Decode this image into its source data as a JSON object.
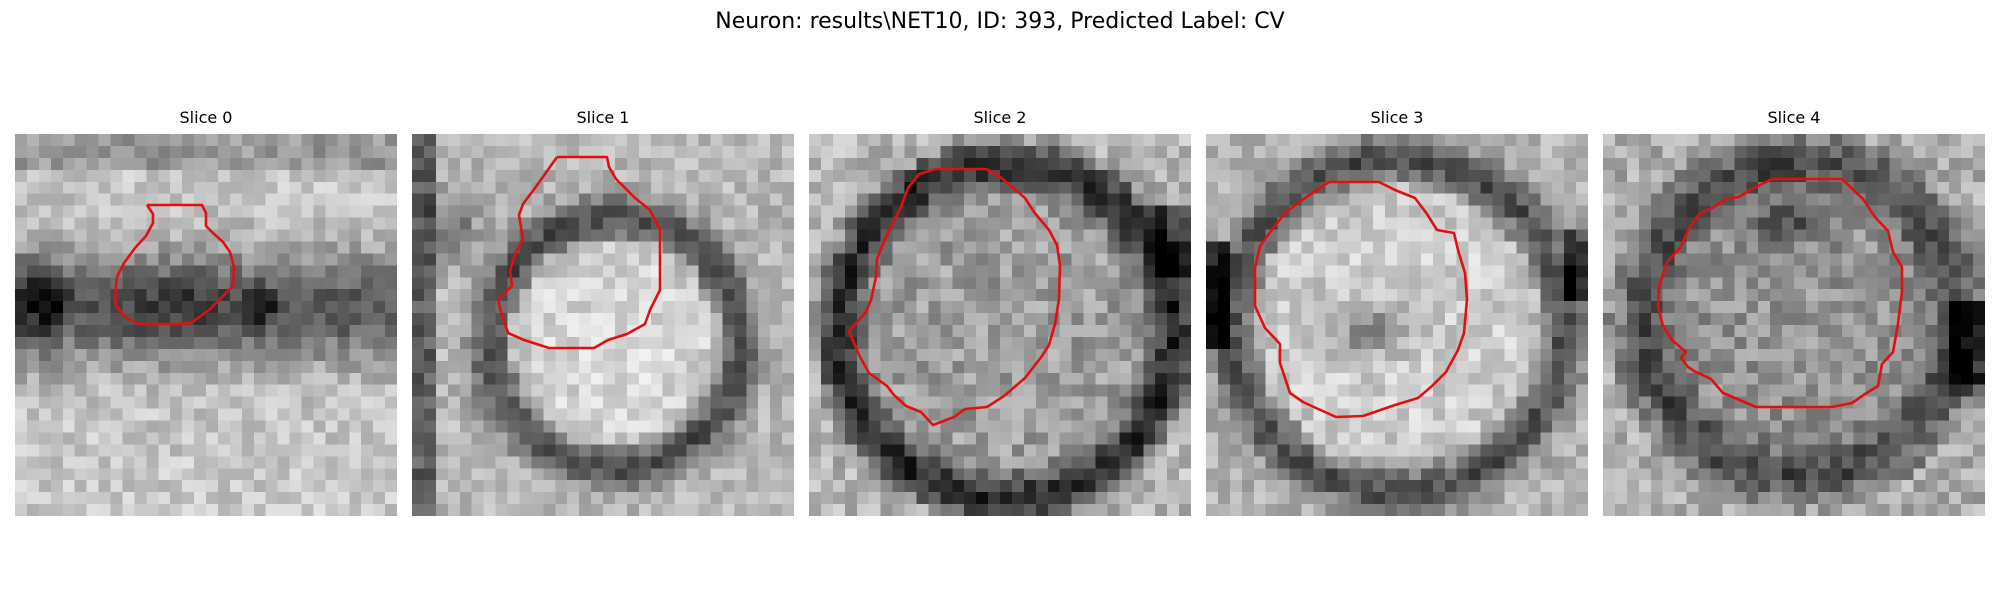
{
  "figure": {
    "title": "Neuron: results\\NET10, ID: 393, Predicted Label: CV"
  },
  "colors": {
    "background": "#ffffff",
    "contour": "#e01010",
    "image_dark": "#000000",
    "image_light": "#ffffff"
  },
  "slices": [
    {
      "title": "Slice 0",
      "image": "grayscale-patch-with-dark-band",
      "contour": "red-segmentation-contour"
    },
    {
      "title": "Slice 1",
      "image": "grayscale-patch-with-bright-vesicle",
      "contour": "red-segmentation-contour"
    },
    {
      "title": "Slice 2",
      "image": "grayscale-patch-with-ring-vesicle",
      "contour": "red-segmentation-contour"
    },
    {
      "title": "Slice 3",
      "image": "grayscale-patch-with-bright-vesicle",
      "contour": "red-segmentation-contour"
    },
    {
      "title": "Slice 4",
      "image": "grayscale-patch-with-textured-vesicle",
      "contour": "red-segmentation-contour"
    }
  ]
}
